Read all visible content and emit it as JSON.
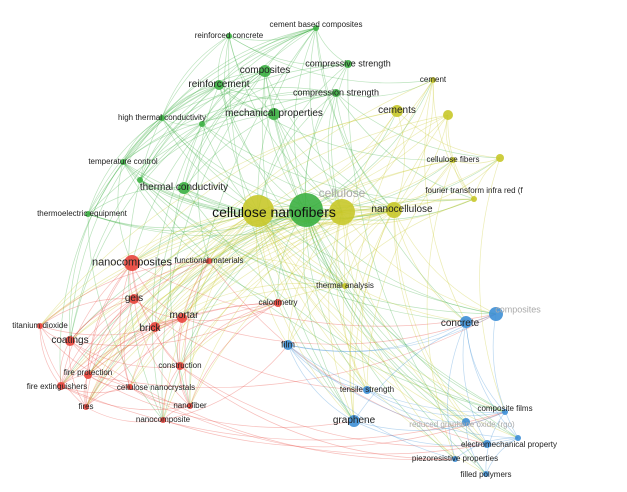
{
  "clusters": {
    "green": "#3cb043",
    "yellow": "#c8c82a",
    "red": "#e8453c",
    "blue": "#3d8fd6"
  },
  "nodes": [
    {
      "label": "reinforced concrete",
      "cluster": "green"
    },
    {
      "label": "cement based composites",
      "cluster": "green"
    },
    {
      "label": "composites",
      "cluster": "green"
    },
    {
      "label": "compressive strength",
      "cluster": "green"
    },
    {
      "label": "reinforcement",
      "cluster": "green"
    },
    {
      "label": "compression strength",
      "cluster": "green"
    },
    {
      "label": "mechanical properties",
      "cluster": "green"
    },
    {
      "label": "high thermal conductivity",
      "cluster": "green"
    },
    {
      "label": "",
      "cluster": "green"
    },
    {
      "label": "temperature control",
      "cluster": "green"
    },
    {
      "label": "",
      "cluster": "green"
    },
    {
      "label": "thermal conductivity",
      "cluster": "green"
    },
    {
      "label": "thermoelectric equipment",
      "cluster": "green"
    },
    {
      "label": "",
      "cluster": "green"
    },
    {
      "label": "cellulose nanofibers",
      "cluster": "yellow"
    },
    {
      "label": "cellulose",
      "cluster": "yellow"
    },
    {
      "label": "nanocellulose",
      "cluster": "yellow"
    },
    {
      "label": "cements",
      "cluster": "yellow"
    },
    {
      "label": "cement",
      "cluster": "yellow"
    },
    {
      "label": "",
      "cluster": "yellow"
    },
    {
      "label": "cellulose fibers",
      "cluster": "yellow"
    },
    {
      "label": "",
      "cluster": "yellow"
    },
    {
      "label": "fourier transform infra red (f",
      "cluster": "yellow"
    },
    {
      "label": "thermal analysis",
      "cluster": "yellow"
    },
    {
      "label": "nanocomposites",
      "cluster": "red"
    },
    {
      "label": "functional materials",
      "cluster": "red"
    },
    {
      "label": "gels",
      "cluster": "red"
    },
    {
      "label": "titanium dioxide",
      "cluster": "red"
    },
    {
      "label": "brick",
      "cluster": "red"
    },
    {
      "label": "mortar",
      "cluster": "red"
    },
    {
      "label": "coatings",
      "cluster": "red"
    },
    {
      "label": "calorimetry",
      "cluster": "red"
    },
    {
      "label": "construction",
      "cluster": "red"
    },
    {
      "label": "fire protection",
      "cluster": "red"
    },
    {
      "label": "fire extinguishers",
      "cluster": "red"
    },
    {
      "label": "cellulose nanocrystals",
      "cluster": "red"
    },
    {
      "label": "fires",
      "cluster": "red"
    },
    {
      "label": "nanofiber",
      "cluster": "red"
    },
    {
      "label": "nanocomposite",
      "cluster": "red"
    },
    {
      "label": "film",
      "cluster": "blue"
    },
    {
      "label": "concrete",
      "cluster": "blue"
    },
    {
      "label": "composites",
      "cluster": "blue"
    },
    {
      "label": "tensile strength",
      "cluster": "blue"
    },
    {
      "label": "graphene",
      "cluster": "blue"
    },
    {
      "label": "reduced graphene oxide (rgo)",
      "cluster": "blue"
    },
    {
      "label": "composite films",
      "cluster": "blue"
    },
    {
      "label": "electromechanical property",
      "cluster": "blue"
    },
    {
      "label": "",
      "cluster": "blue"
    },
    {
      "label": "piezoresistive properties",
      "cluster": "blue"
    },
    {
      "label": "filled polymers",
      "cluster": "blue"
    }
  ]
}
